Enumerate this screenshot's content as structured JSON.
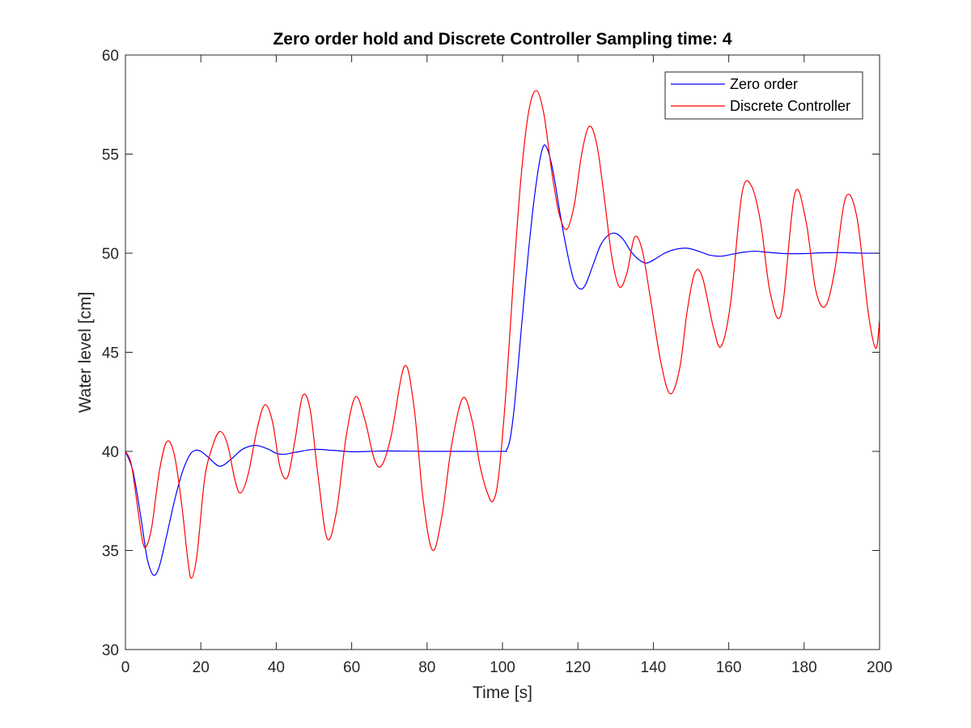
{
  "chart_data": {
    "type": "line",
    "title": "Zero order hold and Discrete Controller Sampling time: 4",
    "xlabel": "Time [s]",
    "ylabel": "Water level [cm]",
    "xlim": [
      0,
      200
    ],
    "ylim": [
      30,
      60
    ],
    "x_ticks": [
      "0",
      "20",
      "40",
      "60",
      "80",
      "100",
      "120",
      "140",
      "160",
      "180",
      "200"
    ],
    "y_ticks": [
      "30",
      "35",
      "40",
      "45",
      "50",
      "55",
      "60"
    ],
    "grid": false,
    "legend_position": "top-right",
    "series": [
      {
        "name": "Zero order",
        "color": "#0000ff",
        "x": [
          0,
          2,
          4,
          5,
          6,
          7.5,
          9,
          11,
          13,
          15,
          17,
          18.5,
          20,
          22,
          25,
          28,
          31,
          34.5,
          38,
          40,
          42,
          45,
          50,
          55,
          60,
          65,
          70,
          80,
          90,
          100,
          101,
          102,
          103,
          104,
          105,
          106,
          107,
          108,
          109,
          110,
          111,
          112,
          113,
          114,
          115,
          116,
          117,
          118,
          119,
          120.5,
          122,
          124,
          126,
          128,
          130,
          132,
          134,
          136,
          138,
          140,
          143,
          146,
          149,
          152,
          155,
          158,
          161,
          164,
          167,
          170,
          175,
          180,
          185,
          190,
          195,
          200
        ],
        "y": [
          40,
          39,
          36.8,
          35.5,
          34.4,
          33.75,
          34.2,
          35.8,
          37.5,
          38.9,
          39.8,
          40.05,
          40.0,
          39.7,
          39.25,
          39.6,
          40.1,
          40.3,
          40.1,
          39.9,
          39.85,
          39.95,
          40.1,
          40.05,
          39.98,
          40.0,
          40.02,
          40.0,
          40.0,
          40.0,
          40.05,
          40.6,
          42.0,
          44.0,
          46.2,
          48.3,
          50.3,
          52.1,
          53.6,
          54.8,
          55.45,
          55.2,
          54.5,
          53.5,
          52.3,
          51.2,
          50.2,
          49.3,
          48.6,
          48.2,
          48.4,
          49.4,
          50.4,
          50.9,
          51.0,
          50.7,
          50.1,
          49.7,
          49.5,
          49.65,
          50.0,
          50.2,
          50.25,
          50.1,
          49.9,
          49.85,
          49.95,
          50.05,
          50.1,
          50.05,
          49.98,
          49.98,
          50.02,
          50.03,
          50.0,
          50.0
        ]
      },
      {
        "name": "Discrete Controller",
        "color": "#ff0000",
        "x": [
          0,
          1.5,
          3,
          4.5,
          5.5,
          7,
          9,
          11,
          13,
          15,
          16.5,
          17.5,
          19,
          21,
          23,
          25,
          27,
          29,
          30.5,
          32.5,
          35,
          37,
          39,
          41,
          43,
          45,
          47,
          49,
          51,
          53.5,
          56,
          58.5,
          61,
          63.5,
          66,
          68,
          70.5,
          74,
          76.5,
          79,
          81.5,
          84,
          86.5,
          89.5,
          92,
          94,
          96,
          97.5,
          99,
          101,
          103,
          105,
          107,
          109,
          111,
          113,
          115,
          117,
          119,
          121,
          123,
          125,
          127,
          129,
          131,
          133,
          135,
          137,
          139,
          142,
          144.5,
          147,
          149,
          151,
          153,
          156,
          158,
          160.5,
          163.5,
          166,
          168.5,
          171,
          174,
          177.5,
          180.5,
          183,
          185.5,
          188,
          191,
          194,
          197,
          199,
          200
        ],
        "y": [
          40,
          39.4,
          37.5,
          35.5,
          35.2,
          36.2,
          39.0,
          40.5,
          39.8,
          37.2,
          34.6,
          33.6,
          34.8,
          38.6,
          40.2,
          41.0,
          40.4,
          38.6,
          37.9,
          38.8,
          41.2,
          42.35,
          41.5,
          39.2,
          38.7,
          40.6,
          42.8,
          42.1,
          38.9,
          35.6,
          37.0,
          40.7,
          42.75,
          41.6,
          39.6,
          39.3,
          40.8,
          44.3,
          42.3,
          37.5,
          35.0,
          36.8,
          40.3,
          42.7,
          41.5,
          39.3,
          37.9,
          37.5,
          38.8,
          43.2,
          49.0,
          54.0,
          57.2,
          58.2,
          57.0,
          54.2,
          52.0,
          51.2,
          52.4,
          55.0,
          56.4,
          55.5,
          52.8,
          49.8,
          48.3,
          49.0,
          50.8,
          50.2,
          48.0,
          44.5,
          42.9,
          44.2,
          47.1,
          49.0,
          48.8,
          46.2,
          45.3,
          47.5,
          53.0,
          53.4,
          51.5,
          48.0,
          47.0,
          53.0,
          51.6,
          48.2,
          47.3,
          49.0,
          52.8,
          51.8,
          47.0,
          45.2,
          46.6
        ]
      }
    ]
  }
}
